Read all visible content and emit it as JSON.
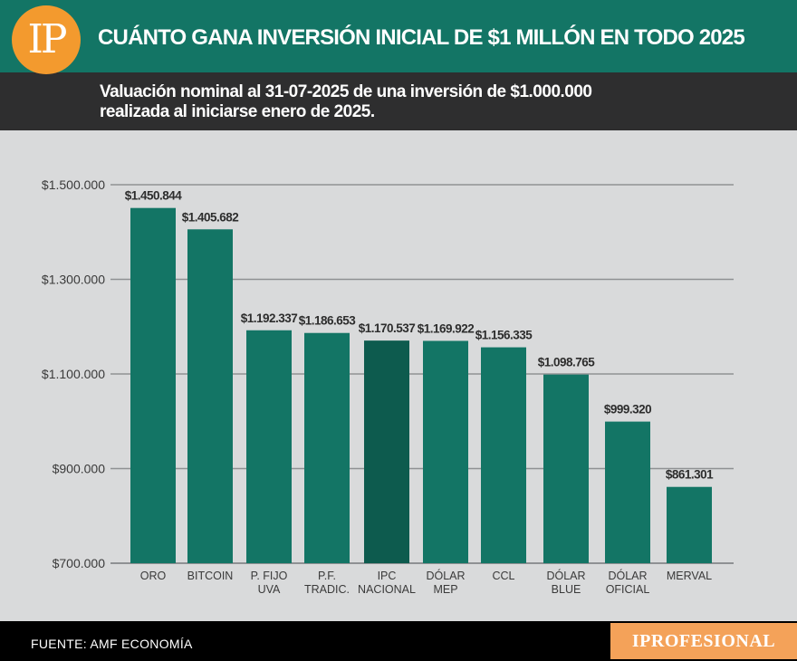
{
  "header": {
    "logo_text": "IP",
    "title": "CUÁNTO GANA INVERSIÓN INICIAL DE $1 MILLÓN EN TODO 2025"
  },
  "subheader": {
    "line1": "Valuación nominal al 31-07-2025 de una inversión de $1.000.000",
    "line2": "realizada al iniciarse enero de 2025."
  },
  "colors": {
    "bar": "#137565",
    "highlight_bar": "#0d5b4e",
    "grid": "#8f9193",
    "header_bg": "#137565",
    "logo": "#f39a2e",
    "brand_bg": "#f4a259"
  },
  "chart_data": {
    "type": "bar",
    "title": "CUÁNTO GANA INVERSIÓN INICIAL DE $1 MILLÓN EN TODO 2025",
    "xlabel": "",
    "ylabel": "",
    "ylim": [
      700000,
      1500000
    ],
    "grid": true,
    "y_ticks": [
      {
        "value": 700000,
        "label": "$700.000"
      },
      {
        "value": 900000,
        "label": "$900.000"
      },
      {
        "value": 1100000,
        "label": "$1.100.000"
      },
      {
        "value": 1300000,
        "label": "$1.300.000"
      },
      {
        "value": 1500000,
        "label": "$1.500.000"
      }
    ],
    "categories": [
      [
        "ORO"
      ],
      [
        "BITCOIN"
      ],
      [
        "P. FIJO",
        "UVA"
      ],
      [
        "P.F.",
        "TRADIC."
      ],
      [
        "IPC",
        "NACIONAL"
      ],
      [
        "DÓLAR",
        "MEP"
      ],
      [
        "CCL"
      ],
      [
        "DÓLAR",
        "BLUE"
      ],
      [
        "DÓLAR",
        "OFICIAL"
      ],
      [
        "MERVAL"
      ]
    ],
    "values": [
      1450844,
      1405682,
      1192337,
      1186653,
      1170537,
      1169922,
      1156335,
      1098765,
      999320,
      861301
    ],
    "value_labels": [
      "$1.450.844",
      "$1.405.682",
      "$1.192.337",
      "$1.186.653",
      "$1.170.537",
      "$1.169.922",
      "$1.156.335",
      "$1.098.765",
      "$999.320",
      "$861.301"
    ],
    "highlight_index": 4
  },
  "footer": {
    "source": "FUENTE: AMF ECONOMÍA",
    "brand": "IPROFESIONAL"
  }
}
